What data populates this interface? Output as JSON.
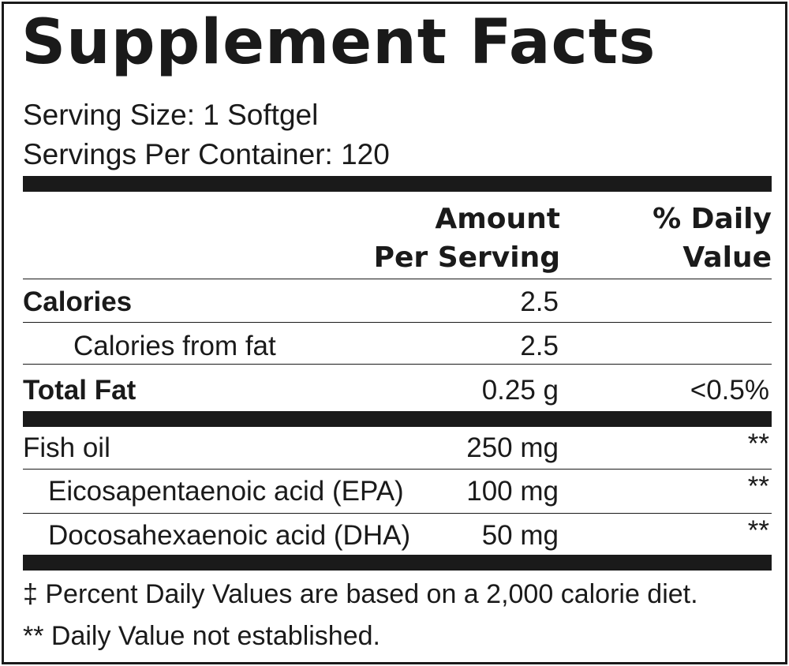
{
  "title": "Supplement Facts",
  "serving_size": "Serving Size: 1 Softgel",
  "servings_per_container": "Servings Per Container: 120",
  "columns": {
    "amount_line1": "Amount",
    "amount_line2": "Per Serving",
    "dv_line1": "% Daily",
    "dv_line2": "Value"
  },
  "rows": [
    {
      "name": "Calories",
      "amount": "2.5",
      "dv": ""
    },
    {
      "name": "Calories from fat",
      "amount": "2.5",
      "dv": ""
    },
    {
      "name": "Total Fat",
      "amount": "0.25 g",
      "dv": "<0.5%"
    },
    {
      "name": "Fish oil",
      "amount": "250 mg",
      "dv": "**"
    },
    {
      "name": "Eicosapentaenoic acid (EPA)",
      "amount": "100 mg",
      "dv": "**"
    },
    {
      "name": "Docosahexaenoic acid (DHA)",
      "amount": "50 mg",
      "dv": "**"
    }
  ],
  "footnotes": [
    "‡ Percent Daily Values are based on a 2,000 calorie diet.",
    "** Daily Value not established."
  ],
  "colors": {
    "ink": "#1a1a1a",
    "background": "#ffffff"
  }
}
